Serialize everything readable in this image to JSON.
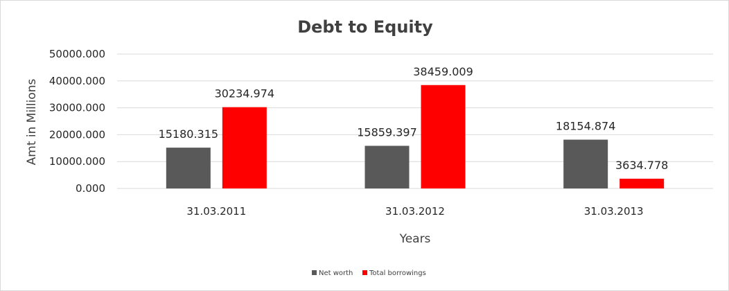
{
  "chart_data": {
    "type": "bar",
    "title": "Debt to Equity",
    "xlabel": "Years",
    "ylabel": "Amt in Millions",
    "categories": [
      "31.03.2011",
      "31.03.2012",
      "31.03.2013"
    ],
    "series": [
      {
        "name": "Net worth",
        "color": "#595959",
        "values": [
          15180.315,
          15859.397,
          18154.874
        ]
      },
      {
        "name": "Total borrowings",
        "color": "#ff0000",
        "values": [
          30234.974,
          38459.009,
          3634.778
        ]
      }
    ],
    "ylim": [
      0,
      50000
    ],
    "yticks": [
      0,
      10000,
      20000,
      30000,
      40000,
      50000
    ],
    "ytick_labels": [
      "0.000",
      "10000.000",
      "20000.000",
      "30000.000",
      "40000.000",
      "50000.000"
    ],
    "data_labels": [
      [
        "15180.315",
        "15859.397",
        "18154.874"
      ],
      [
        "30234.974",
        "38459.009",
        "3634.778"
      ]
    ],
    "grid": true,
    "legend_position": "bottom"
  }
}
